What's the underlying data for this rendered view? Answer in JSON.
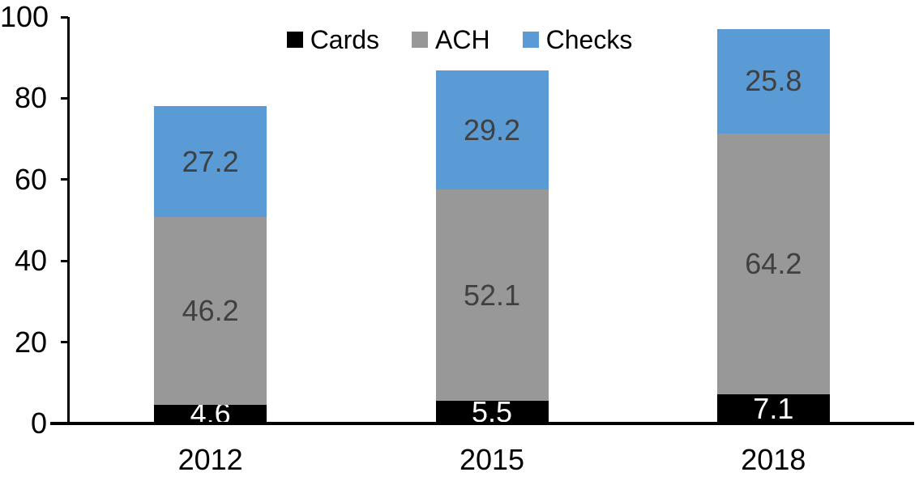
{
  "chart_data": {
    "type": "bar",
    "stacked": true,
    "title": "",
    "categories": [
      "2012",
      "2015",
      "2018"
    ],
    "series": [
      {
        "name": "Cards",
        "color": "#000000",
        "label_color": "#ffffff",
        "values": [
          4.6,
          5.5,
          7.1
        ]
      },
      {
        "name": "ACH",
        "color": "#989898",
        "label_color": "#404040",
        "values": [
          46.2,
          52.1,
          64.2
        ]
      },
      {
        "name": "Checks",
        "color": "#5B9BD5",
        "label_color": "#404040",
        "values": [
          27.2,
          29.2,
          25.8
        ]
      }
    ],
    "totals": [
      78.0,
      86.8,
      97.1
    ],
    "xlabel": "",
    "ylabel": "",
    "ylim": [
      0,
      100
    ],
    "y_ticks": [
      "0",
      "20",
      "40",
      "60",
      "80",
      "100"
    ],
    "grid": false,
    "legend_position": "top-center",
    "axis_color": "#000000",
    "background_color": "#ffffff"
  }
}
